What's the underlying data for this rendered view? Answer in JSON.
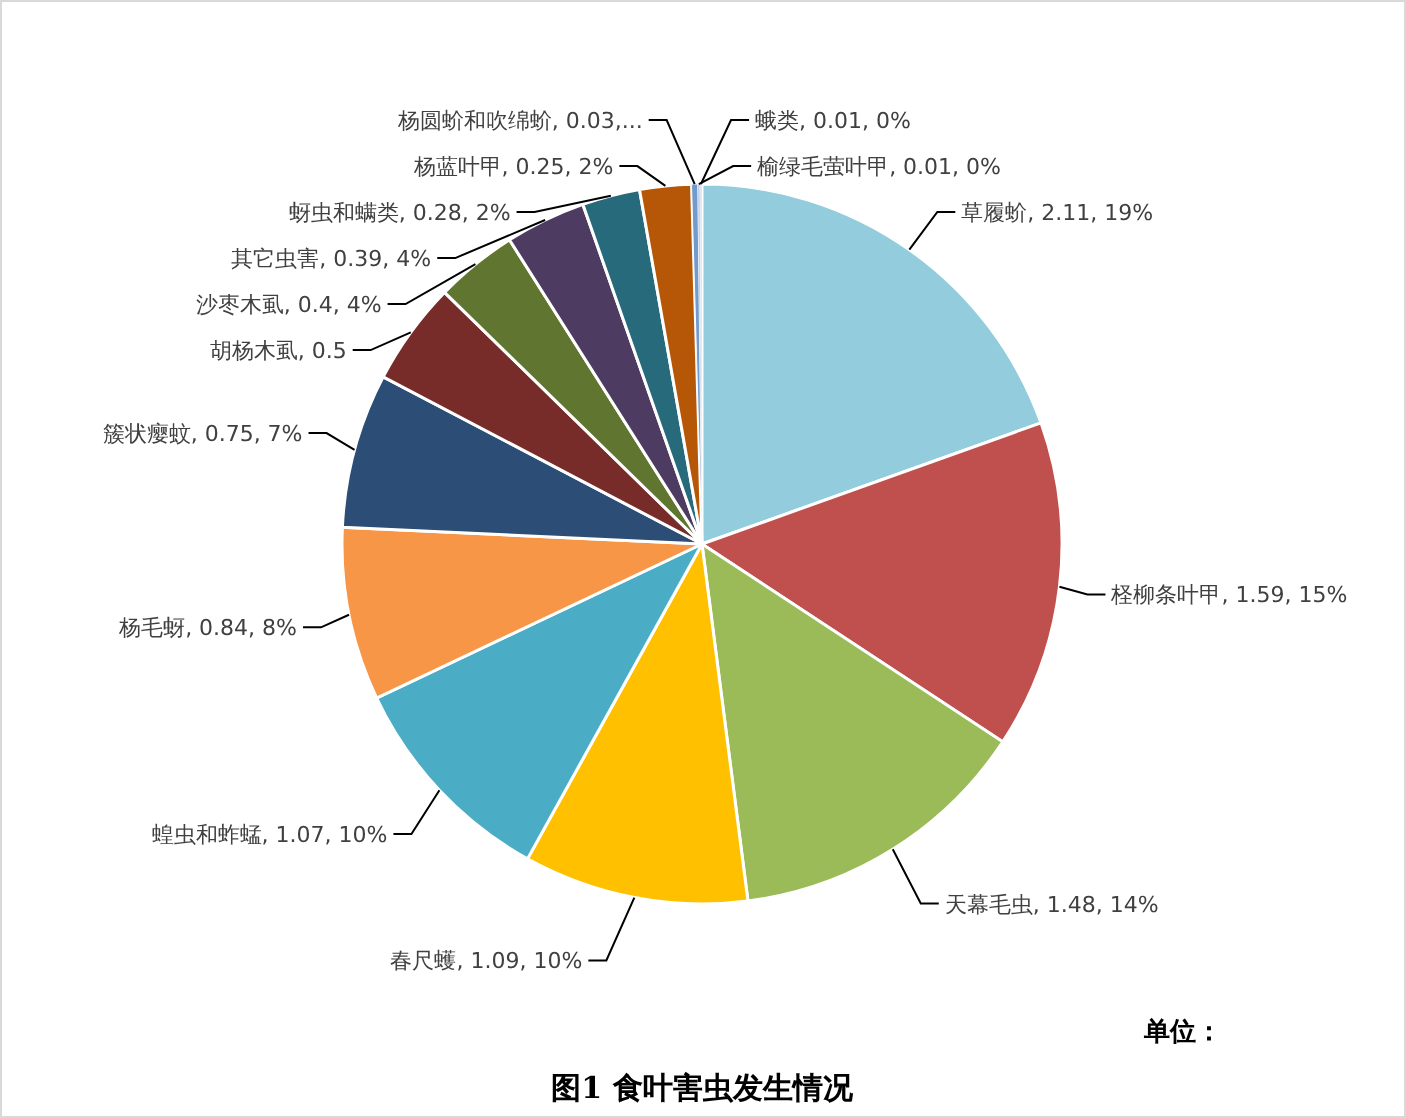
{
  "chart_data": {
    "type": "pie",
    "title": "图1 食叶害虫发生情况",
    "annotations": [
      "单位："
    ],
    "categories": [
      "草履蚧",
      "柽柳条叶甲",
      "天幕毛虫",
      "春尺蠖",
      "蝗虫和蚱蜢",
      "杨毛蚜",
      "簇状瘿蚊",
      "胡杨木虱",
      "沙枣木虱",
      "其它虫害",
      "蚜虫和螨类",
      "杨蓝叶甲",
      "杨圆蚧和吹绵蚧",
      "榆绿毛萤叶甲",
      "蛾类"
    ],
    "values": [
      2.11,
      1.59,
      1.48,
      1.09,
      1.07,
      0.84,
      0.75,
      0.5,
      0.4,
      0.39,
      0.28,
      0.25,
      0.03,
      0.01,
      0.01
    ],
    "colors": [
      "#93cddd",
      "#c0504d",
      "#9bbb59",
      "#ffc000",
      "#4bacc6",
      "#f79646",
      "#2c4d75",
      "#772c2a",
      "#5f7530",
      "#4d3b62",
      "#276a7c",
      "#b65708",
      "#729aca",
      "#b9cde5",
      "#dbe5f1"
    ],
    "value_labels": [
      "2.11, 19%",
      "1.59, 15%",
      "1.48, 14%",
      "1.09, 10%",
      "1.07, 10%",
      "0.84, 8%",
      "0.75, 7%",
      "0.5",
      "0.4, 4%",
      "0.39, 4%",
      "0.28, 2%",
      "0.25, 2%",
      "0.03,...",
      "0.01, 0%",
      "0.01, 0%"
    ]
  }
}
